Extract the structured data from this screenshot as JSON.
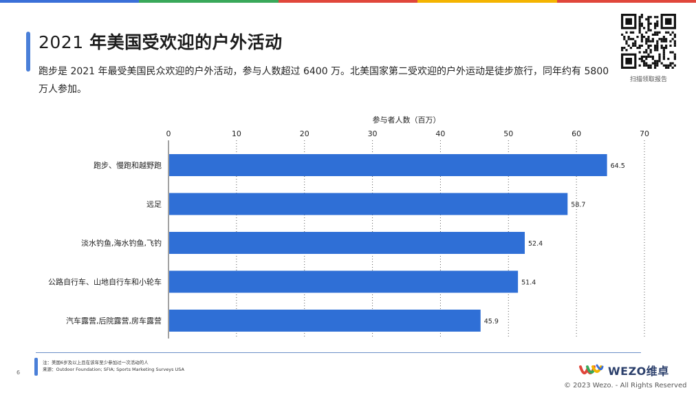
{
  "header": {
    "title_year": "2021",
    "title_rest": "年美国受欢迎的户外活动",
    "subtitle": "跑步是 2021 年最受美国民众欢迎的户外活动，参与人数超过 6400 万。北美国家第二受欢迎的户外运动是徒步旅行，同年约有 5800 万人参加。",
    "qr_caption": "扫描领取报告"
  },
  "colors": {
    "bar": "#2f6fd6",
    "accent": "#4a7fd8",
    "topbar": [
      "#3a6fd8",
      "#39a85a",
      "#e0463b",
      "#f4b400",
      "#e0463b"
    ]
  },
  "chart_data": {
    "type": "bar",
    "orientation": "horizontal",
    "xlabel": "参与者人数（百万）",
    "xlim": [
      0,
      70
    ],
    "xticks": [
      0,
      10,
      20,
      30,
      40,
      50,
      60,
      70
    ],
    "categories": [
      "跑步、慢跑和越野跑",
      "远足",
      "淡水钓鱼,海水钓鱼,飞钓",
      "公路自行车、山地自行车和小轮车",
      "汽车露营,后院露营,房车露营"
    ],
    "values": [
      64.5,
      58.7,
      52.4,
      51.4,
      45.9
    ],
    "data_labels": [
      "64.5",
      "58.7",
      "52.4",
      "51.4",
      "45.9"
    ],
    "grid": "vertical dotted",
    "axis_position": "top"
  },
  "footer": {
    "note_line1": "注：美国6岁及以上且在该年至少参加过一次活动的人",
    "note_line2": "来源：Outdoor Foundation; SFIA; Sports Marketing Surveys USA",
    "page_number": "6",
    "brand": "WEZO维卓",
    "copyright": "© 2023 Wezo. - All Rights Reserved"
  }
}
